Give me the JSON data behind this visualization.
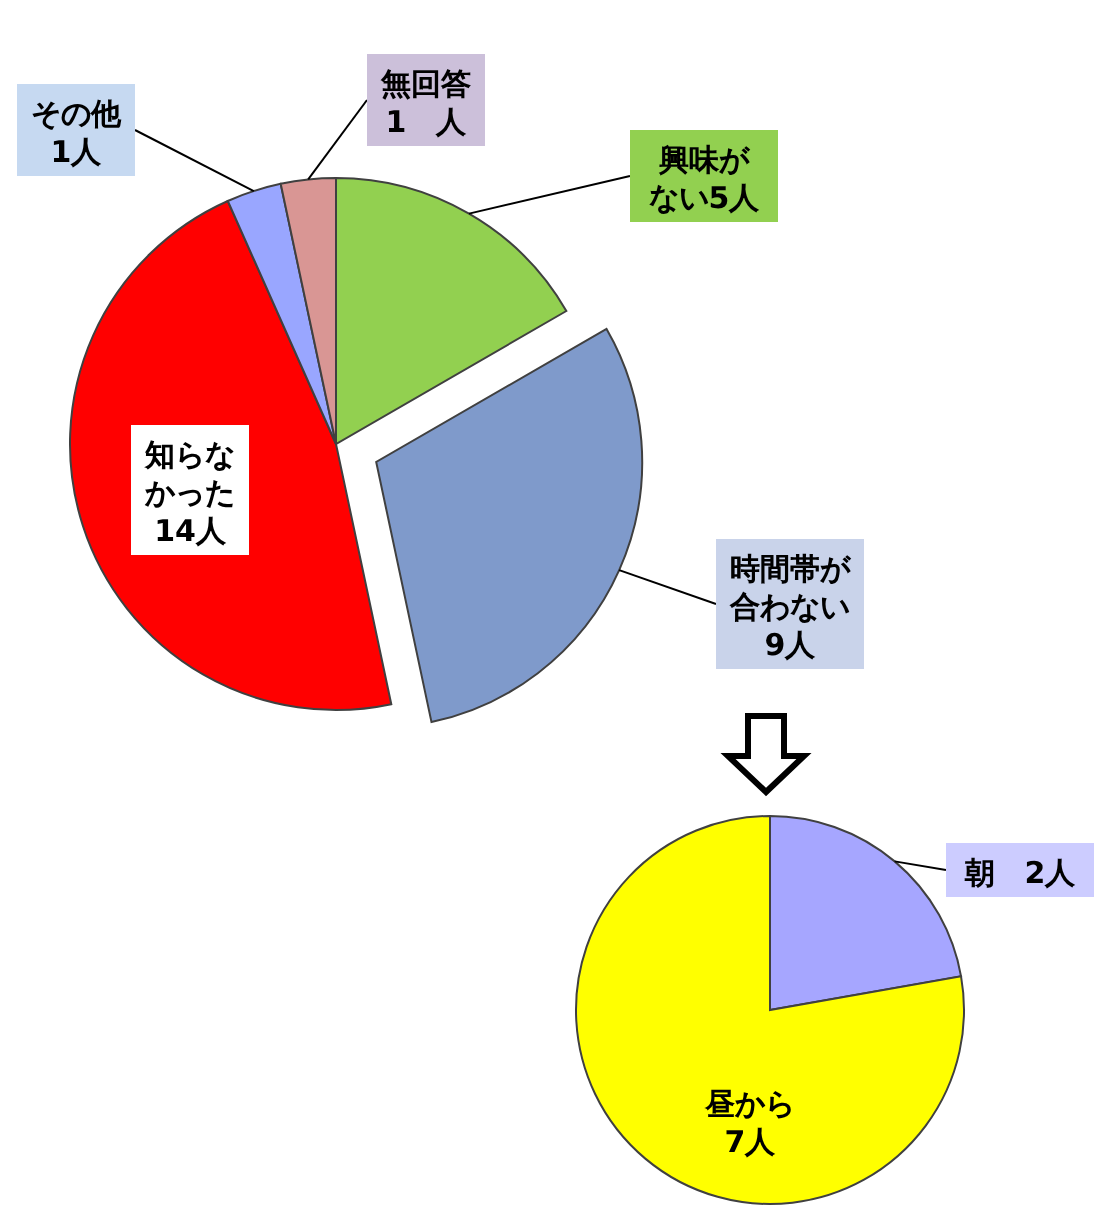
{
  "chart_data": [
    {
      "type": "pie",
      "categories": [
        "興味がない5人",
        "時間帯が合わない9人",
        "知らなかった14人",
        "その他1人",
        "無回答1　人"
      ],
      "values": [
        5,
        9,
        14,
        1,
        1
      ],
      "colors": [
        "#92d050",
        "#7f9acb",
        "#ff0000",
        "#99a6ff",
        "#d99694"
      ]
    },
    {
      "type": "pie",
      "categories": [
        "朝　2人",
        "昼から7人"
      ],
      "values": [
        2,
        7
      ],
      "colors": [
        "#a6a6ff",
        "#ffff00"
      ]
    }
  ]
}
